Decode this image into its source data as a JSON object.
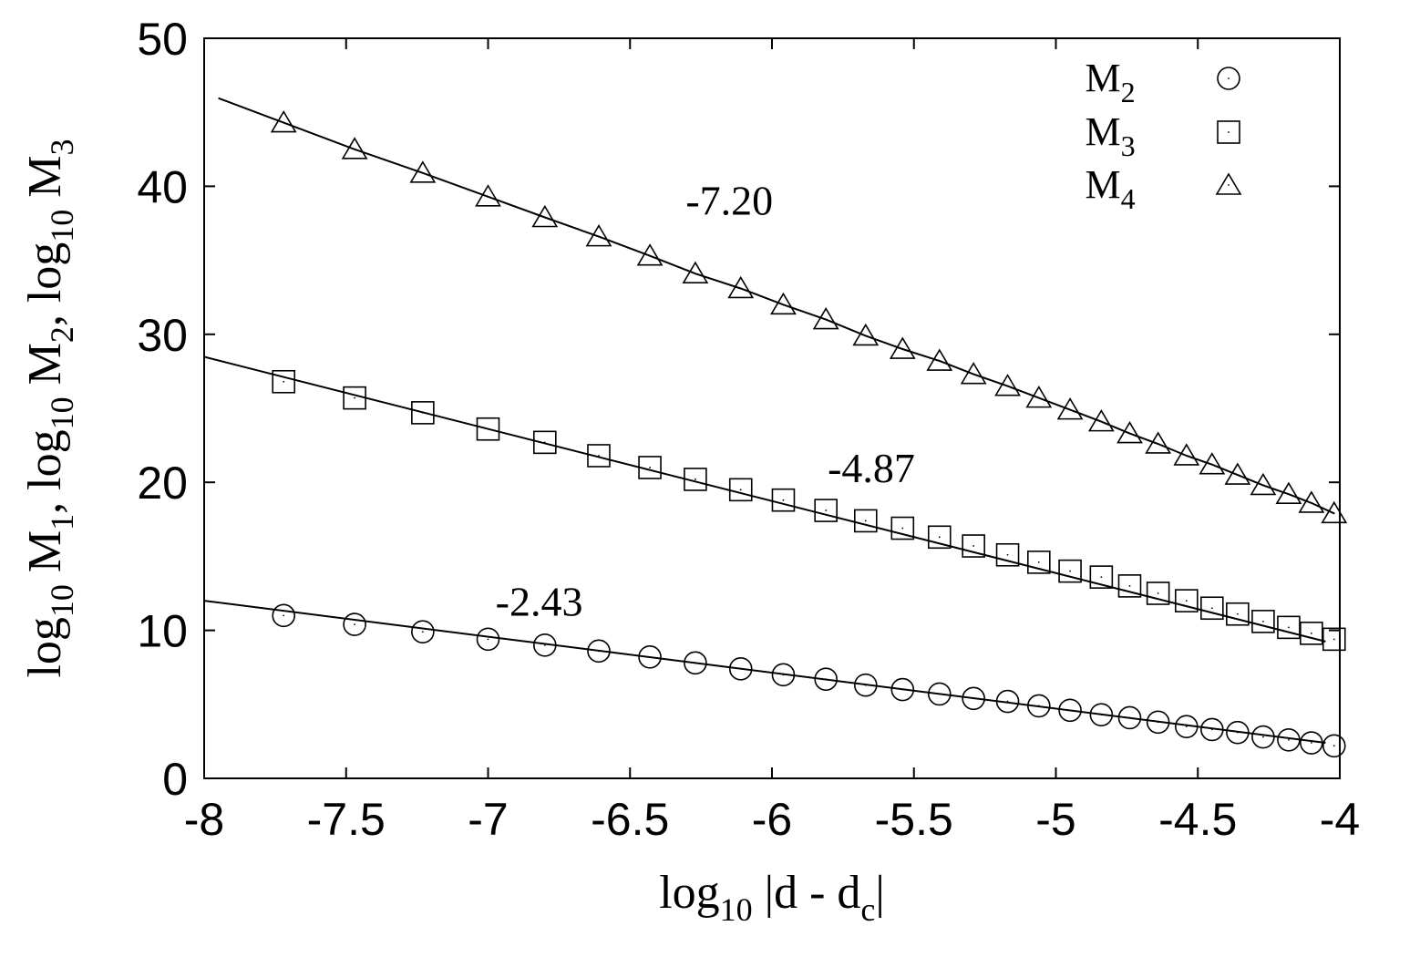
{
  "chart_data": {
    "type": "scatter",
    "xlabel": {
      "base": "log",
      "sub": "10",
      "rest": " |d - d",
      "sub2": "c",
      "end": "|"
    },
    "ylabel": [
      {
        "base": "log",
        "sub": "10",
        "rest": " M",
        "sub2": "1",
        "end": ", "
      },
      {
        "base": "log",
        "sub": "10",
        "rest": " M",
        "sub2": "2",
        "end": ", "
      },
      {
        "base": "log",
        "sub": "10",
        "rest": " M",
        "sub2": "3",
        "end": ""
      }
    ],
    "xlim": [
      -8,
      -4
    ],
    "ylim": [
      0,
      50
    ],
    "xticks": [
      -8,
      -7.5,
      -7,
      -6.5,
      -6,
      -5.5,
      -5,
      -4.5,
      -4
    ],
    "xtick_labels": [
      "-8",
      "-7.5",
      "-7",
      "-6.5",
      "-6",
      "-5.5",
      "-5",
      "-4.5",
      "-4"
    ],
    "yticks": [
      0,
      10,
      20,
      30,
      40,
      50
    ],
    "ytick_labels": [
      "0",
      "10",
      "20",
      "30",
      "40",
      "50"
    ],
    "legend_position": "top-right",
    "x": [
      -7.72,
      -7.47,
      -7.23,
      -7.0,
      -6.8,
      -6.61,
      -6.43,
      -6.27,
      -6.11,
      -5.96,
      -5.81,
      -5.67,
      -5.54,
      -5.41,
      -5.29,
      -5.17,
      -5.06,
      -4.95,
      -4.84,
      -4.74,
      -4.64,
      -4.54,
      -4.45,
      -4.36,
      -4.27,
      -4.18,
      -4.1,
      -4.02
    ],
    "series": [
      {
        "name": "M",
        "sub": "2",
        "marker": "circle",
        "values": [
          11.0,
          10.4,
          9.9,
          9.4,
          9.0,
          8.6,
          8.2,
          7.8,
          7.4,
          7.0,
          6.7,
          6.3,
          6.0,
          5.7,
          5.4,
          5.2,
          4.9,
          4.6,
          4.3,
          4.1,
          3.8,
          3.5,
          3.3,
          3.1,
          2.8,
          2.6,
          2.4,
          2.2
        ],
        "fit": {
          "slope": -2.43,
          "intercept": -7.44
        }
      },
      {
        "name": "M",
        "sub": "3",
        "marker": "square",
        "values": [
          26.8,
          25.7,
          24.7,
          23.6,
          22.7,
          21.8,
          21.0,
          20.2,
          19.5,
          18.8,
          18.1,
          17.4,
          16.9,
          16.3,
          15.7,
          15.1,
          14.6,
          14.0,
          13.6,
          13.0,
          12.5,
          12.0,
          11.5,
          11.1,
          10.6,
          10.2,
          9.8,
          9.4
        ],
        "fit": {
          "slope": -4.87,
          "intercept": -10.48
        }
      },
      {
        "name": "M",
        "sub": "4",
        "marker": "triangle",
        "values": [
          44.3,
          42.5,
          40.9,
          39.3,
          37.9,
          36.6,
          35.3,
          34.1,
          33.1,
          32.0,
          31.0,
          29.9,
          29.0,
          28.2,
          27.3,
          26.5,
          25.7,
          24.9,
          24.1,
          23.3,
          22.6,
          21.8,
          21.2,
          20.5,
          19.8,
          19.2,
          18.6,
          17.9
        ]
      }
    ],
    "annotations": [
      {
        "text": "-7.20",
        "x": -6.15,
        "y": 38.1
      },
      {
        "text": "-4.87",
        "x": -5.65,
        "y": 20.0
      },
      {
        "text": "-2.43",
        "x": -6.82,
        "y": 11.0
      }
    ]
  }
}
